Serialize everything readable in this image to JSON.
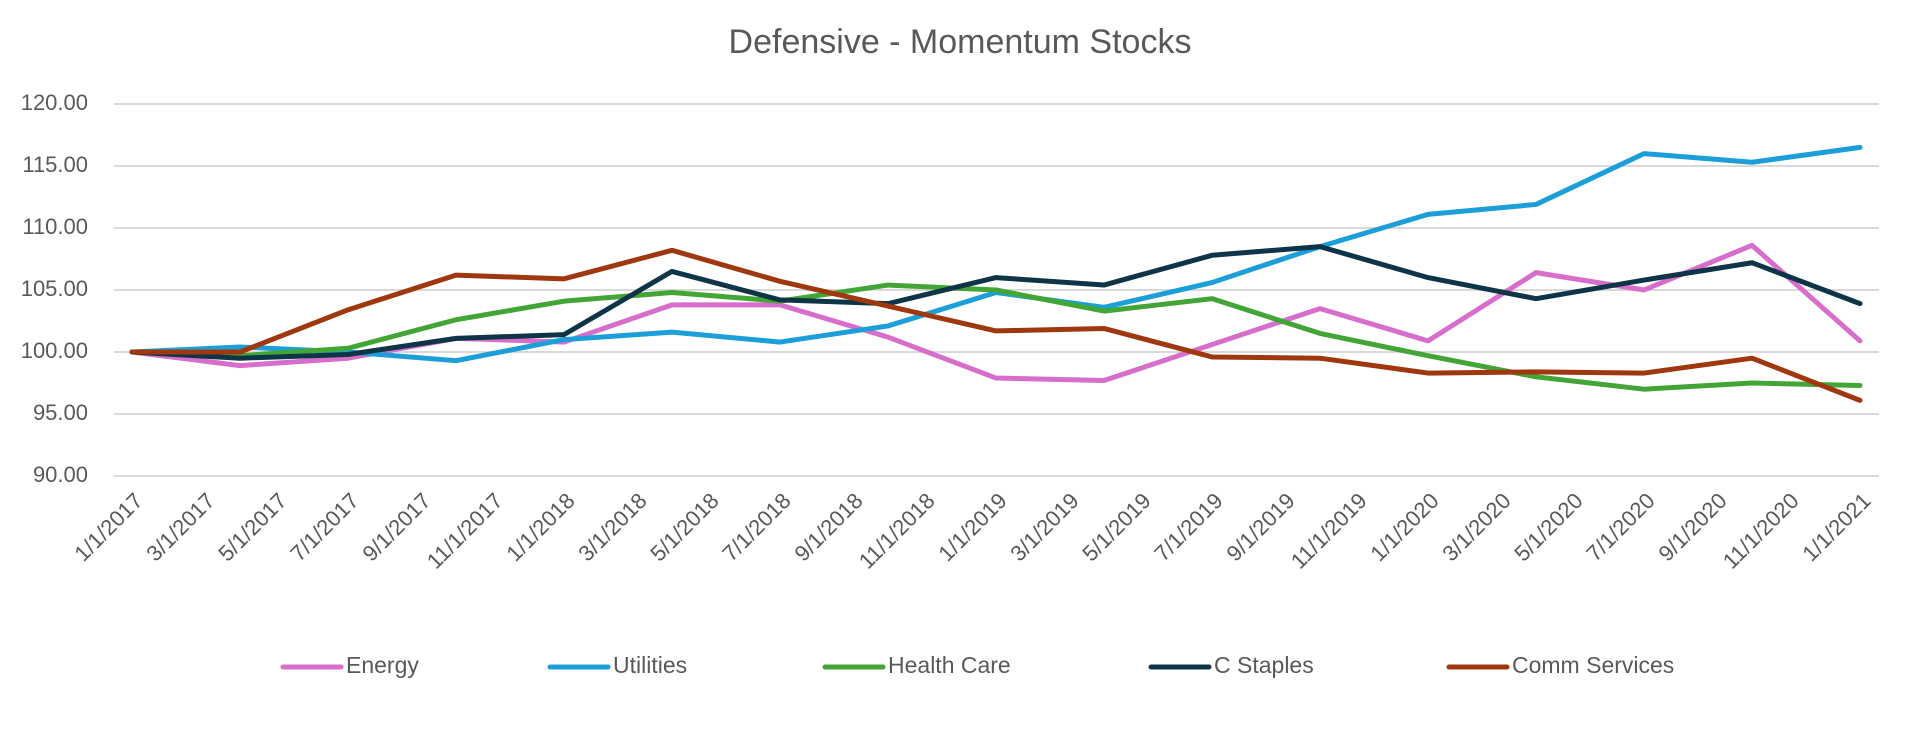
{
  "chart_data": {
    "type": "line",
    "title": "Defensive - Momentum Stocks",
    "x": [
      "1/1/2017",
      "4/1/2017",
      "7/1/2017",
      "10/1/2017",
      "1/1/2018",
      "4/1/2018",
      "7/1/2018",
      "10/1/2018",
      "1/1/2019",
      "4/1/2019",
      "7/1/2019",
      "10/1/2019",
      "1/1/2020",
      "4/1/2020",
      "7/1/2020",
      "10/1/2020",
      "1/1/2021"
    ],
    "series": [
      {
        "name": "Energy",
        "color": "#d86ecc",
        "values": [
          100,
          98.9,
          99.5,
          101.1,
          100.8,
          103.8,
          103.8,
          101.2,
          97.9,
          97.7,
          100.6,
          103.5,
          100.9,
          106.4,
          105.0,
          108.6,
          100.9
        ]
      },
      {
        "name": "Utilities",
        "color": "#1c9fd8",
        "values": [
          100,
          100.4,
          100.0,
          99.3,
          101.0,
          101.6,
          100.8,
          102.1,
          104.8,
          103.6,
          105.6,
          108.5,
          111.1,
          111.9,
          116.0,
          115.3,
          116.5
        ]
      },
      {
        "name": "Health Care",
        "color": "#43a535",
        "values": [
          100,
          99.7,
          100.3,
          102.6,
          104.1,
          104.8,
          104.1,
          105.4,
          105.0,
          103.3,
          104.3,
          101.5,
          99.7,
          98.0,
          97.0,
          97.5,
          97.3
        ]
      },
      {
        "name": "C Staples",
        "color": "#0e3448",
        "values": [
          100,
          99.5,
          99.8,
          101.1,
          101.4,
          106.5,
          104.2,
          103.9,
          106.0,
          105.4,
          107.8,
          108.5,
          106.0,
          104.3,
          105.8,
          107.2,
          103.9
        ]
      },
      {
        "name": "Comm Services",
        "color": "#a0380f",
        "values": [
          100,
          100.0,
          103.4,
          106.2,
          105.9,
          108.2,
          105.7,
          103.7,
          101.7,
          101.9,
          99.6,
          99.5,
          98.3,
          98.4,
          98.3,
          99.5,
          96.1
        ]
      }
    ],
    "xticks": [
      "1/1/2017",
      "3/1/2017",
      "5/1/2017",
      "7/1/2017",
      "9/1/2017",
      "11/1/2017",
      "1/1/2018",
      "3/1/2018",
      "5/1/2018",
      "7/1/2018",
      "9/1/2018",
      "11/1/2018",
      "1/1/2019",
      "3/1/2019",
      "5/1/2019",
      "7/1/2019",
      "9/1/2019",
      "11/1/2019",
      "1/1/2020",
      "3/1/2020",
      "5/1/2020",
      "7/1/2020",
      "9/1/2020",
      "11/1/2020",
      "1/1/2021"
    ],
    "ylim": [
      90,
      120
    ],
    "yticks": [
      {
        "value": 90,
        "label": "90.00"
      },
      {
        "value": 95,
        "label": "95.00"
      },
      {
        "value": 100,
        "label": "100.00"
      },
      {
        "value": 105,
        "label": "105.00"
      },
      {
        "value": 110,
        "label": "110.00"
      },
      {
        "value": 115,
        "label": "115.00"
      },
      {
        "value": 120,
        "label": "120.00"
      }
    ],
    "grid": true,
    "legend": "bottom"
  }
}
